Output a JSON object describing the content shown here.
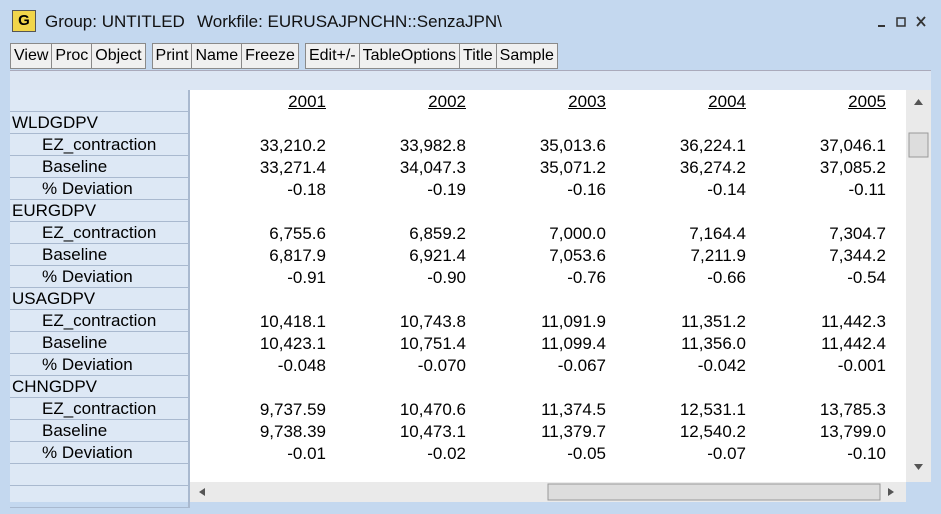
{
  "window": {
    "icon": "G",
    "title": "Group: UNTITLED",
    "workfile": "Workfile: EURUSAJPNCHN::SenzaJPN\\"
  },
  "toolbar": {
    "buttons": [
      "View",
      "Proc",
      "Object",
      "Print",
      "Name",
      "Freeze",
      "Edit+/-",
      "TableOptions",
      "Title",
      "Sample"
    ]
  },
  "table": {
    "columns": [
      "2001",
      "2002",
      "2003",
      "2004",
      "2005"
    ],
    "rows": [
      {
        "label": "WLDGDPV"
      },
      {
        "label": "EZ_contraction",
        "values": [
          "33,210.2",
          "33,982.8",
          "35,013.6",
          "36,224.1",
          "37,046.1"
        ]
      },
      {
        "label": "Baseline",
        "values": [
          "33,271.4",
          "34,047.3",
          "35,071.2",
          "36,274.2",
          "37,085.2"
        ]
      },
      {
        "label": "% Deviation",
        "values": [
          "-0.18",
          "-0.19",
          "-0.16",
          "-0.14",
          "-0.11"
        ]
      },
      {
        "label": "EURGDPV"
      },
      {
        "label": "EZ_contraction",
        "values": [
          "6,755.6",
          "6,859.2",
          "7,000.0",
          "7,164.4",
          "7,304.7"
        ]
      },
      {
        "label": "Baseline",
        "values": [
          "6,817.9",
          "6,921.4",
          "7,053.6",
          "7,211.9",
          "7,344.2"
        ]
      },
      {
        "label": "% Deviation",
        "values": [
          "-0.91",
          "-0.90",
          "-0.76",
          "-0.66",
          "-0.54"
        ]
      },
      {
        "label": "USAGDPV"
      },
      {
        "label": "EZ_contraction",
        "values": [
          "10,418.1",
          "10,743.8",
          "11,091.9",
          "11,351.2",
          "11,442.3"
        ]
      },
      {
        "label": "Baseline",
        "values": [
          "10,423.1",
          "10,751.4",
          "11,099.4",
          "11,356.0",
          "11,442.4"
        ]
      },
      {
        "label": "% Deviation",
        "values": [
          "-0.048",
          "-0.070",
          "-0.067",
          "-0.042",
          "-0.001"
        ]
      },
      {
        "label": "CHNGDPV"
      },
      {
        "label": "EZ_contraction",
        "values": [
          "9,737.59",
          "10,470.6",
          "11,374.5",
          "12,531.1",
          "13,785.3"
        ]
      },
      {
        "label": "Baseline",
        "values": [
          "9,738.39",
          "10,473.1",
          "11,379.7",
          "12,540.2",
          "13,799.0"
        ]
      },
      {
        "label": "% Deviation",
        "values": [
          "-0.01",
          "-0.02",
          "-0.05",
          "-0.07",
          "-0.10"
        ]
      }
    ]
  }
}
